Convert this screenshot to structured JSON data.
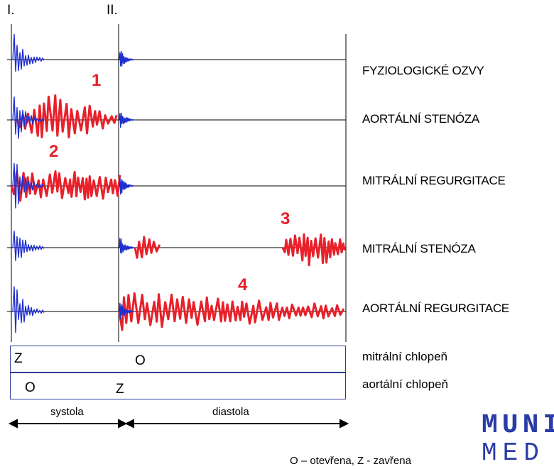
{
  "heart_sounds": {
    "first": "I.",
    "second": "II."
  },
  "murmur_numbers": [
    "1",
    "2",
    "3",
    "4"
  ],
  "rows": [
    {
      "label": "FYZIOLOGICKÉ OZVY"
    },
    {
      "label": "AORTÁLNÍ STENÓZA"
    },
    {
      "label": "MITRÁLNÍ REGURGITACE"
    },
    {
      "label": "MITRÁLNÍ STENÓZA"
    },
    {
      "label": "AORTÁLNÍ REGURGITACE"
    }
  ],
  "valves": {
    "mitral": {
      "label": "mitrální  chlopeň",
      "systole_state": "Z",
      "diastole_state": "O"
    },
    "aortic": {
      "label": "aortální chlopeň",
      "systole_state": "O",
      "diastole_state": "Z"
    }
  },
  "phases": {
    "systole": "systola",
    "diastole": "diastola"
  },
  "legend": "O – otevřena,  Z - zavřena",
  "logo": {
    "top": "MUNI",
    "bottom": "MED"
  },
  "colors": {
    "sound": "#1f2fd0",
    "murmur": "#e8202a",
    "box": "#2f3d9c",
    "logo": "#2a3ca6"
  }
}
